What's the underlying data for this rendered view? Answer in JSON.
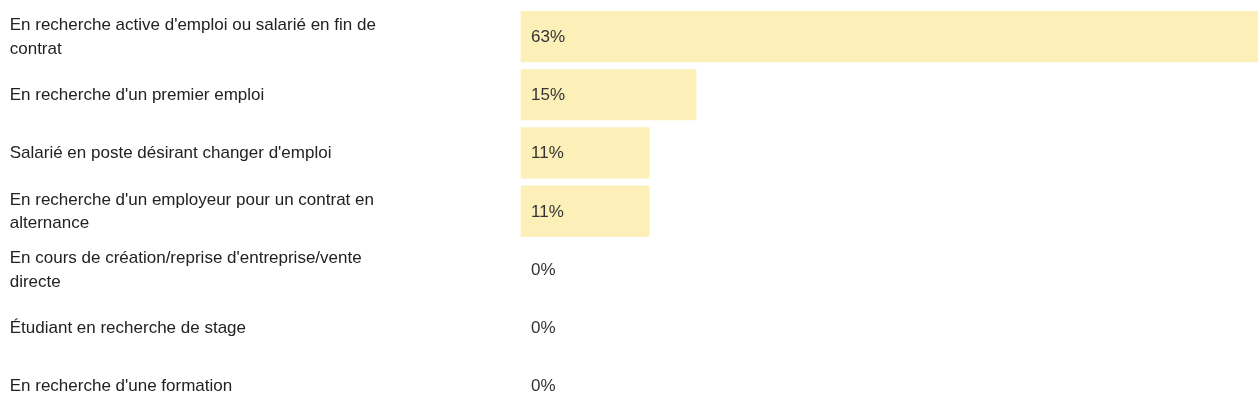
{
  "chart_data": {
    "type": "bar",
    "orientation": "horizontal",
    "categories": [
      "En recherche active d'emploi ou salarié en fin de contrat",
      "En recherche d'un premier emploi",
      "Salarié en poste désirant changer d'emploi",
      "En recherche d'un employeur pour un contrat en alternance",
      "En cours de création/reprise d'entreprise/vente directe",
      "Étudiant en recherche de stage",
      "En recherche d'une formation"
    ],
    "values": [
      63,
      15,
      11,
      11,
      0,
      0,
      0
    ],
    "value_labels": [
      "63%",
      "15%",
      "11%",
      "11%",
      "0%",
      "0%",
      "0%"
    ],
    "color": "#fdefb8",
    "grid": false
  }
}
